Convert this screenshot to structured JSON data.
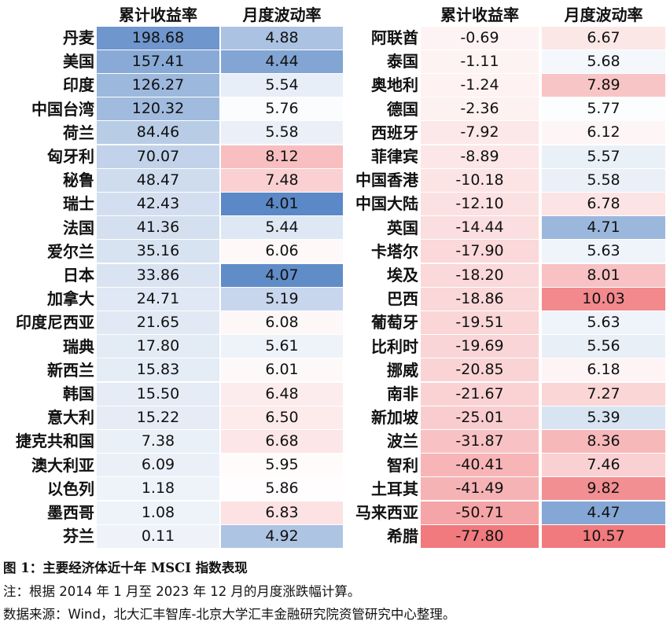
{
  "headers": {
    "cum_return": "累计收益率",
    "volatility": "月度波动率"
  },
  "left_rows": [
    {
      "name": "丹麦",
      "ret": "198.68",
      "vol": "4.88"
    },
    {
      "name": "美国",
      "ret": "157.41",
      "vol": "4.44"
    },
    {
      "name": "印度",
      "ret": "126.27",
      "vol": "5.54"
    },
    {
      "name": "中国台湾",
      "ret": "120.32",
      "vol": "5.76"
    },
    {
      "name": "荷兰",
      "ret": "84.46",
      "vol": "5.58"
    },
    {
      "name": "匈牙利",
      "ret": "70.07",
      "vol": "8.12"
    },
    {
      "name": "秘鲁",
      "ret": "48.47",
      "vol": "7.48"
    },
    {
      "name": "瑞士",
      "ret": "42.43",
      "vol": "4.01"
    },
    {
      "name": "法国",
      "ret": "41.36",
      "vol": "5.44"
    },
    {
      "name": "爱尔兰",
      "ret": "35.16",
      "vol": "6.06"
    },
    {
      "name": "日本",
      "ret": "33.86",
      "vol": "4.07"
    },
    {
      "name": "加拿大",
      "ret": "24.71",
      "vol": "5.19"
    },
    {
      "name": "印度尼西亚",
      "ret": "21.65",
      "vol": "6.08"
    },
    {
      "name": "瑞典",
      "ret": "17.80",
      "vol": "5.61"
    },
    {
      "name": "新西兰",
      "ret": "15.83",
      "vol": "6.01"
    },
    {
      "name": "韩国",
      "ret": "15.50",
      "vol": "6.48"
    },
    {
      "name": "意大利",
      "ret": "15.22",
      "vol": "6.50"
    },
    {
      "name": "捷克共和国",
      "ret": "7.38",
      "vol": "6.68"
    },
    {
      "name": "澳大利亚",
      "ret": "6.09",
      "vol": "5.95"
    },
    {
      "name": "以色列",
      "ret": "1.18",
      "vol": "5.86"
    },
    {
      "name": "墨西哥",
      "ret": "1.08",
      "vol": "6.83"
    },
    {
      "name": "芬兰",
      "ret": "0.11",
      "vol": "4.92"
    }
  ],
  "right_rows": [
    {
      "name": "阿联酋",
      "ret": "-0.69",
      "vol": "6.67"
    },
    {
      "name": "泰国",
      "ret": "-1.11",
      "vol": "5.68"
    },
    {
      "name": "奥地利",
      "ret": "-1.24",
      "vol": "7.89"
    },
    {
      "name": "德国",
      "ret": "-2.36",
      "vol": "5.77"
    },
    {
      "name": "西班牙",
      "ret": "-7.92",
      "vol": "6.12"
    },
    {
      "name": "菲律宾",
      "ret": "-8.89",
      "vol": "5.57"
    },
    {
      "name": "中国香港",
      "ret": "-10.18",
      "vol": "5.58"
    },
    {
      "name": "中国大陆",
      "ret": "-12.10",
      "vol": "6.78"
    },
    {
      "name": "英国",
      "ret": "-14.44",
      "vol": "4.71"
    },
    {
      "name": "卡塔尔",
      "ret": "-17.90",
      "vol": "5.63"
    },
    {
      "name": "埃及",
      "ret": "-18.20",
      "vol": "8.01"
    },
    {
      "name": "巴西",
      "ret": "-18.86",
      "vol": "10.03"
    },
    {
      "name": "葡萄牙",
      "ret": "-19.51",
      "vol": "5.63"
    },
    {
      "name": "比利时",
      "ret": "-19.69",
      "vol": "5.56"
    },
    {
      "name": "挪威",
      "ret": "-20.85",
      "vol": "6.18"
    },
    {
      "name": "南非",
      "ret": "-21.67",
      "vol": "7.27"
    },
    {
      "name": "新加坡",
      "ret": "-25.01",
      "vol": "5.39"
    },
    {
      "name": "波兰",
      "ret": "-31.87",
      "vol": "8.36"
    },
    {
      "name": "智利",
      "ret": "-40.41",
      "vol": "7.46"
    },
    {
      "name": "土耳其",
      "ret": "-41.49",
      "vol": "9.82"
    },
    {
      "name": "马来西亚",
      "ret": "-50.71",
      "vol": "4.47"
    },
    {
      "name": "希腊",
      "ret": "-77.80",
      "vol": "10.57"
    }
  ],
  "caption": {
    "title": "图 1：主要经济体近十年 MSCI 指数表现",
    "note": "注：根据 2014 年 1 月至 2023 年 12 月的月度涨跌幅计算。",
    "source": "数据来源：Wind，北大汇丰智库-北京大学汇丰金融研究院资管研究中心整理。"
  },
  "colors": {
    "blue": "#5b88c6",
    "red": "#f07a7e",
    "white": "#ffffff"
  }
}
